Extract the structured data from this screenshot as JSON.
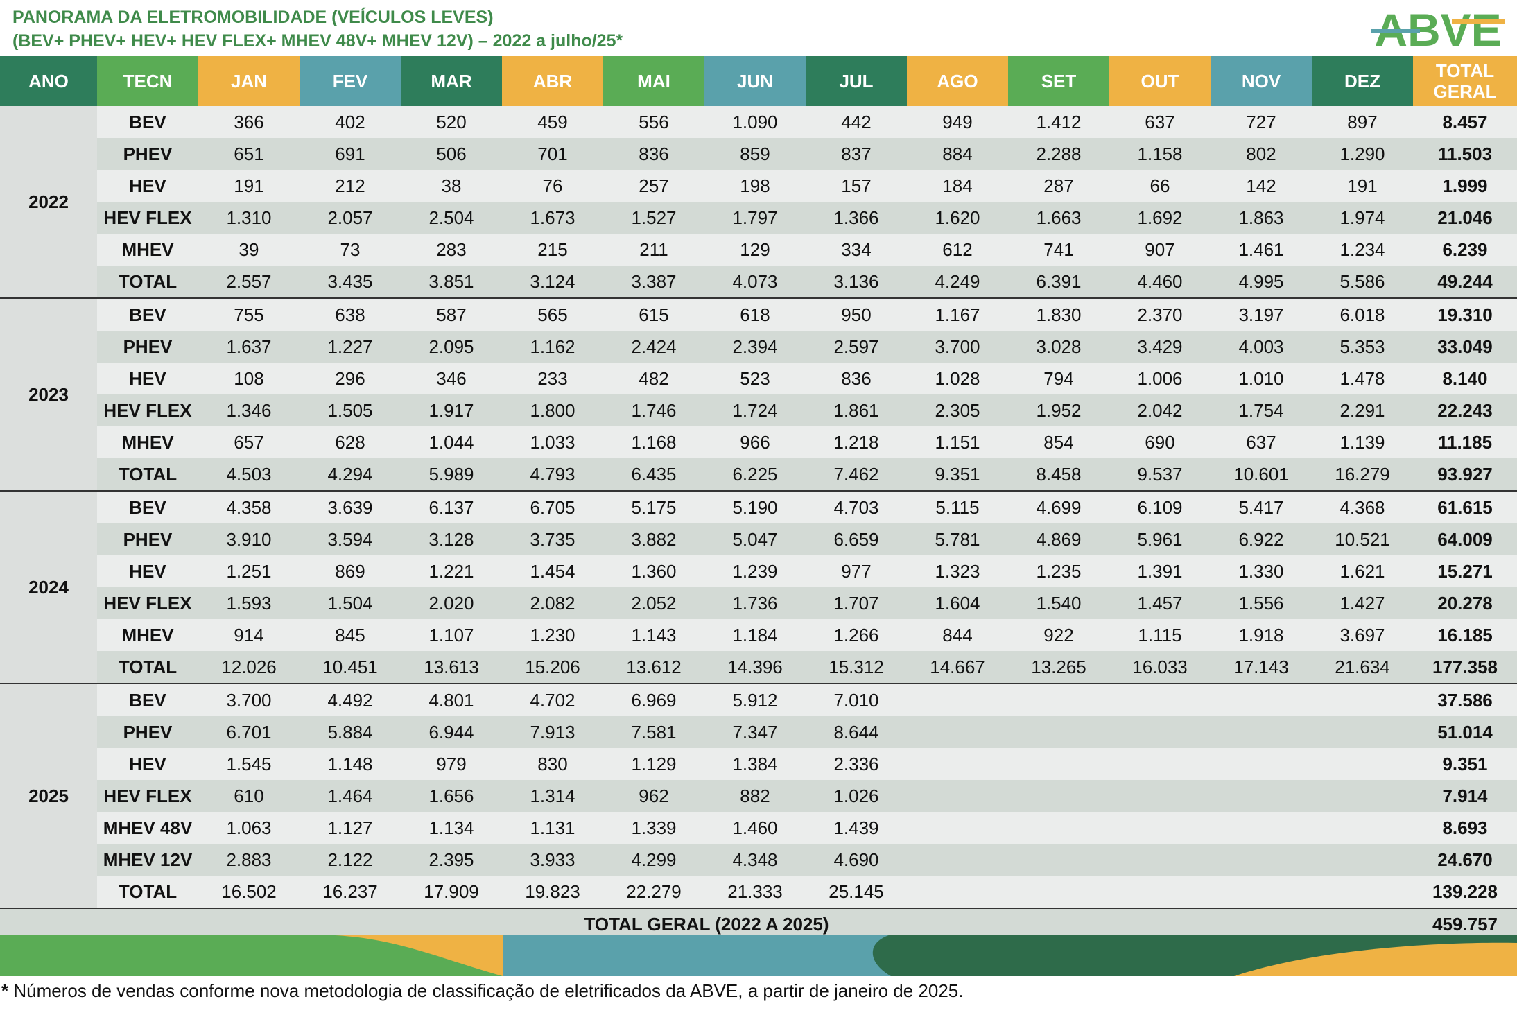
{
  "header": {
    "title_line1": "PANORAMA DA ELETROMOBILIDADE (VEÍCULOS LEVES)",
    "title_line2": "(BEV+ PHEV+ HEV+ HEV FLEX+ MHEV 48V+ MHEV 12V) – 2022 a julho/25*",
    "logo_text": "ABVE"
  },
  "columns": [
    "ANO",
    "TECN",
    "JAN",
    "FEV",
    "MAR",
    "ABR",
    "MAI",
    "JUN",
    "JUL",
    "AGO",
    "SET",
    "OUT",
    "NOV",
    "DEZ",
    "TOTAL GERAL"
  ],
  "column_colors": [
    "#2e7d5b",
    "#5aac55",
    "#efb244",
    "#5aa1ab",
    "#2e7d5b",
    "#efb244",
    "#5aac55",
    "#5aa1ab",
    "#2e7d5b",
    "#efb244",
    "#5aac55",
    "#efb244",
    "#5aa1ab",
    "#2e7d5b",
    "#efb244"
  ],
  "groups": [
    {
      "year": "2022",
      "rows": [
        {
          "tecn": "BEV",
          "values": [
            "366",
            "402",
            "520",
            "459",
            "556",
            "1.090",
            "442",
            "949",
            "1.412",
            "637",
            "727",
            "897"
          ],
          "total": "8.457"
        },
        {
          "tecn": "PHEV",
          "values": [
            "651",
            "691",
            "506",
            "701",
            "836",
            "859",
            "837",
            "884",
            "2.288",
            "1.158",
            "802",
            "1.290"
          ],
          "total": "11.503"
        },
        {
          "tecn": "HEV",
          "values": [
            "191",
            "212",
            "38",
            "76",
            "257",
            "198",
            "157",
            "184",
            "287",
            "66",
            "142",
            "191"
          ],
          "total": "1.999"
        },
        {
          "tecn": "HEV FLEX",
          "values": [
            "1.310",
            "2.057",
            "2.504",
            "1.673",
            "1.527",
            "1.797",
            "1.366",
            "1.620",
            "1.663",
            "1.692",
            "1.863",
            "1.974"
          ],
          "total": "21.046"
        },
        {
          "tecn": "MHEV",
          "values": [
            "39",
            "73",
            "283",
            "215",
            "211",
            "129",
            "334",
            "612",
            "741",
            "907",
            "1.461",
            "1.234"
          ],
          "total": "6.239"
        },
        {
          "tecn": "TOTAL",
          "values": [
            "2.557",
            "3.435",
            "3.851",
            "3.124",
            "3.387",
            "4.073",
            "3.136",
            "4.249",
            "6.391",
            "4.460",
            "4.995",
            "5.586"
          ],
          "total": "49.244"
        }
      ]
    },
    {
      "year": "2023",
      "rows": [
        {
          "tecn": "BEV",
          "values": [
            "755",
            "638",
            "587",
            "565",
            "615",
            "618",
            "950",
            "1.167",
            "1.830",
            "2.370",
            "3.197",
            "6.018"
          ],
          "total": "19.310"
        },
        {
          "tecn": "PHEV",
          "values": [
            "1.637",
            "1.227",
            "2.095",
            "1.162",
            "2.424",
            "2.394",
            "2.597",
            "3.700",
            "3.028",
            "3.429",
            "4.003",
            "5.353"
          ],
          "total": "33.049"
        },
        {
          "tecn": "HEV",
          "values": [
            "108",
            "296",
            "346",
            "233",
            "482",
            "523",
            "836",
            "1.028",
            "794",
            "1.006",
            "1.010",
            "1.478"
          ],
          "total": "8.140"
        },
        {
          "tecn": "HEV FLEX",
          "values": [
            "1.346",
            "1.505",
            "1.917",
            "1.800",
            "1.746",
            "1.724",
            "1.861",
            "2.305",
            "1.952",
            "2.042",
            "1.754",
            "2.291"
          ],
          "total": "22.243"
        },
        {
          "tecn": "MHEV",
          "values": [
            "657",
            "628",
            "1.044",
            "1.033",
            "1.168",
            "966",
            "1.218",
            "1.151",
            "854",
            "690",
            "637",
            "1.139"
          ],
          "total": "11.185"
        },
        {
          "tecn": "TOTAL",
          "values": [
            "4.503",
            "4.294",
            "5.989",
            "4.793",
            "6.435",
            "6.225",
            "7.462",
            "9.351",
            "8.458",
            "9.537",
            "10.601",
            "16.279"
          ],
          "total": "93.927"
        }
      ]
    },
    {
      "year": "2024",
      "rows": [
        {
          "tecn": "BEV",
          "values": [
            "4.358",
            "3.639",
            "6.137",
            "6.705",
            "5.175",
            "5.190",
            "4.703",
            "5.115",
            "4.699",
            "6.109",
            "5.417",
            "4.368"
          ],
          "total": "61.615"
        },
        {
          "tecn": "PHEV",
          "values": [
            "3.910",
            "3.594",
            "3.128",
            "3.735",
            "3.882",
            "5.047",
            "6.659",
            "5.781",
            "4.869",
            "5.961",
            "6.922",
            "10.521"
          ],
          "total": "64.009"
        },
        {
          "tecn": "HEV",
          "values": [
            "1.251",
            "869",
            "1.221",
            "1.454",
            "1.360",
            "1.239",
            "977",
            "1.323",
            "1.235",
            "1.391",
            "1.330",
            "1.621"
          ],
          "total": "15.271"
        },
        {
          "tecn": "HEV FLEX",
          "values": [
            "1.593",
            "1.504",
            "2.020",
            "2.082",
            "2.052",
            "1.736",
            "1.707",
            "1.604",
            "1.540",
            "1.457",
            "1.556",
            "1.427"
          ],
          "total": "20.278"
        },
        {
          "tecn": "MHEV",
          "values": [
            "914",
            "845",
            "1.107",
            "1.230",
            "1.143",
            "1.184",
            "1.266",
            "844",
            "922",
            "1.115",
            "1.918",
            "3.697"
          ],
          "total": "16.185"
        },
        {
          "tecn": "TOTAL",
          "values": [
            "12.026",
            "10.451",
            "13.613",
            "15.206",
            "13.612",
            "14.396",
            "15.312",
            "14.667",
            "13.265",
            "16.033",
            "17.143",
            "21.634"
          ],
          "total": "177.358"
        }
      ]
    },
    {
      "year": "2025",
      "rows": [
        {
          "tecn": "BEV",
          "values": [
            "3.700",
            "4.492",
            "4.801",
            "4.702",
            "6.969",
            "5.912",
            "7.010",
            "",
            "",
            "",
            "",
            ""
          ],
          "total": "37.586"
        },
        {
          "tecn": "PHEV",
          "values": [
            "6.701",
            "5.884",
            "6.944",
            "7.913",
            "7.581",
            "7.347",
            "8.644",
            "",
            "",
            "",
            "",
            ""
          ],
          "total": "51.014"
        },
        {
          "tecn": "HEV",
          "values": [
            "1.545",
            "1.148",
            "979",
            "830",
            "1.129",
            "1.384",
            "2.336",
            "",
            "",
            "",
            "",
            ""
          ],
          "total": "9.351"
        },
        {
          "tecn": "HEV FLEX",
          "values": [
            "610",
            "1.464",
            "1.656",
            "1.314",
            "962",
            "882",
            "1.026",
            "",
            "",
            "",
            "",
            ""
          ],
          "total": "7.914"
        },
        {
          "tecn": "MHEV 48V",
          "values": [
            "1.063",
            "1.127",
            "1.134",
            "1.131",
            "1.339",
            "1.460",
            "1.439",
            "",
            "",
            "",
            "",
            ""
          ],
          "total": "8.693"
        },
        {
          "tecn": "MHEV 12V",
          "values": [
            "2.883",
            "2.122",
            "2.395",
            "3.933",
            "4.299",
            "4.348",
            "4.690",
            "",
            "",
            "",
            "",
            ""
          ],
          "total": "24.670"
        },
        {
          "tecn": "TOTAL",
          "values": [
            "16.502",
            "16.237",
            "17.909",
            "19.823",
            "22.279",
            "21.333",
            "25.145",
            "",
            "",
            "",
            "",
            ""
          ],
          "total": "139.228"
        }
      ]
    }
  ],
  "grand_total": {
    "label": "TOTAL GERAL (2022 A 2025)",
    "value": "459.757"
  },
  "footnote": {
    "star": "*",
    "text": " Números de vendas conforme nova metodologia de classificação de eletrificados da ABVE, a partir de janeiro de 2025."
  },
  "brand_colors": {
    "dark_green": "#2e6b4a",
    "green": "#5aac55",
    "orange": "#efb244",
    "teal": "#5aa1ab"
  }
}
